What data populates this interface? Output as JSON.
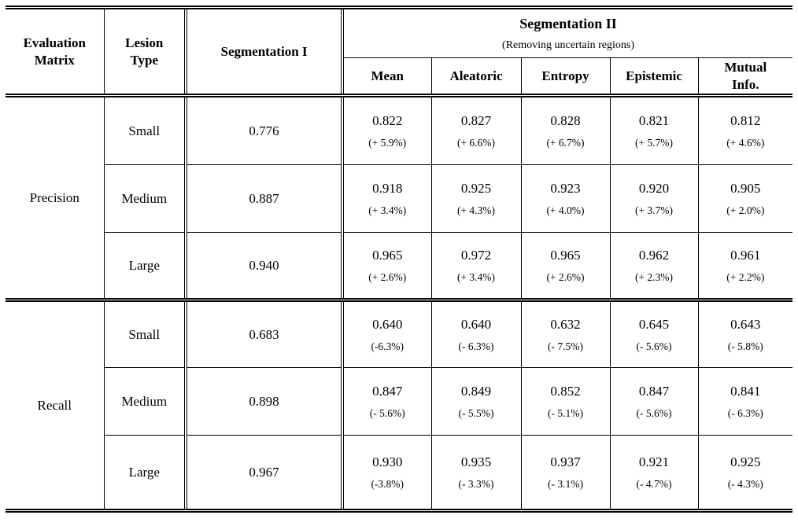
{
  "table": {
    "header": {
      "evaluation_matrix": "Evaluation Matrix",
      "lesion_type": "Lesion Type",
      "segmentation_1": "Segmentation I",
      "segmentation_2_title": "Segmentation II",
      "segmentation_2_subtitle": "(Removing uncertain regions)",
      "subcolumns": [
        "Mean",
        "Aleatoric",
        "Entropy",
        "Epistemic",
        "Mutual Info."
      ]
    },
    "sections": [
      {
        "metric": "Precision",
        "rows": [
          {
            "lesion_type": "Small",
            "segmentation_1": "0.776",
            "segmentation_2": [
              {
                "value": "0.822",
                "delta": "(+ 5.9%)"
              },
              {
                "value": "0.827",
                "delta": "(+ 6.6%)"
              },
              {
                "value": "0.828",
                "delta": "(+ 6.7%)"
              },
              {
                "value": "0.821",
                "delta": "(+ 5.7%)"
              },
              {
                "value": "0.812",
                "delta": "(+ 4.6%)"
              }
            ]
          },
          {
            "lesion_type": "Medium",
            "segmentation_1": "0.887",
            "segmentation_2": [
              {
                "value": "0.918",
                "delta": "(+ 3.4%)"
              },
              {
                "value": "0.925",
                "delta": "(+ 4.3%)"
              },
              {
                "value": "0.923",
                "delta": "(+ 4.0%)"
              },
              {
                "value": "0.920",
                "delta": "(+ 3.7%)"
              },
              {
                "value": "0.905",
                "delta": "(+ 2.0%)"
              }
            ]
          },
          {
            "lesion_type": "Large",
            "segmentation_1": "0.940",
            "segmentation_2": [
              {
                "value": "0.965",
                "delta": "(+ 2.6%)"
              },
              {
                "value": "0.972",
                "delta": "(+ 3.4%)"
              },
              {
                "value": "0.965",
                "delta": "(+ 2.6%)"
              },
              {
                "value": "0.962",
                "delta": "(+ 2.3%)"
              },
              {
                "value": "0.961",
                "delta": "(+ 2.2%)"
              }
            ]
          }
        ]
      },
      {
        "metric": "Recall",
        "rows": [
          {
            "lesion_type": "Small",
            "segmentation_1": "0.683",
            "segmentation_2": [
              {
                "value": "0.640",
                "delta": "(-6.3%)"
              },
              {
                "value": "0.640",
                "delta": "(- 6.3%)"
              },
              {
                "value": "0.632",
                "delta": "(- 7.5%)"
              },
              {
                "value": "0.645",
                "delta": "(- 5.6%)"
              },
              {
                "value": "0.643",
                "delta": "(- 5.8%)"
              }
            ]
          },
          {
            "lesion_type": "Medium",
            "segmentation_1": "0.898",
            "segmentation_2": [
              {
                "value": "0.847",
                "delta": "(- 5.6%)"
              },
              {
                "value": "0.849",
                "delta": "(- 5.5%)"
              },
              {
                "value": "0.852",
                "delta": "(- 5.1%)"
              },
              {
                "value": "0.847",
                "delta": "(- 5.6%)"
              },
              {
                "value": "0.841",
                "delta": "(- 6.3%)"
              }
            ]
          },
          {
            "lesion_type": "Large",
            "segmentation_1": "0.967",
            "segmentation_2": [
              {
                "value": "0.930",
                "delta": "(-3.8%)"
              },
              {
                "value": "0.935",
                "delta": "(- 3.3%)"
              },
              {
                "value": "0.937",
                "delta": "(- 3.1%)"
              },
              {
                "value": "0.921",
                "delta": "(- 4.7%)"
              },
              {
                "value": "0.925",
                "delta": "(- 4.3%)"
              }
            ]
          }
        ]
      }
    ]
  }
}
